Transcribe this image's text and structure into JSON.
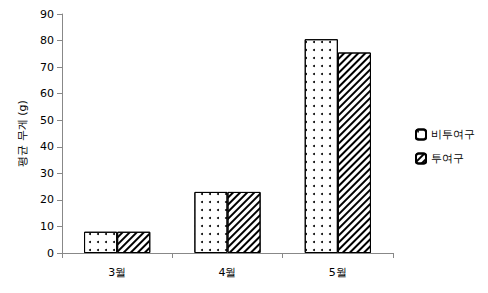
{
  "chart_data": {
    "type": "bar",
    "categories": [
      "3월",
      "4월",
      "5월"
    ],
    "series": [
      {
        "name": "비투여구",
        "color": "#ffffff",
        "marker": "dots",
        "values": [
          8,
          23,
          80.5
        ]
      },
      {
        "name": "투여구",
        "color": "#ffffff",
        "marker": "hatch",
        "values": [
          8,
          23,
          75.5
        ]
      }
    ],
    "y_label": "평균 무게 (g)",
    "ylim": [
      0,
      90
    ],
    "yticks": [
      0,
      10,
      20,
      30,
      40,
      50,
      60,
      70,
      80,
      90
    ],
    "grid": false,
    "legend": "right"
  }
}
